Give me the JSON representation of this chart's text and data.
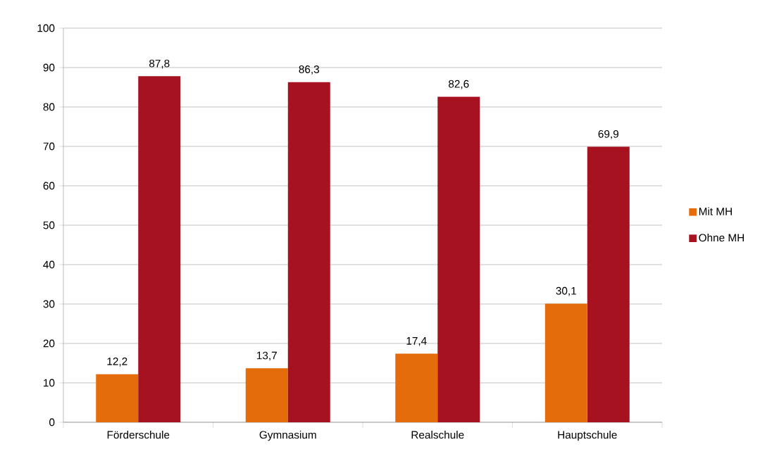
{
  "chart_data": {
    "type": "bar",
    "categories": [
      "Förderschule",
      "Gymnasium",
      "Realschule",
      "Hauptschule"
    ],
    "series": [
      {
        "name": "Mit MH",
        "color": "#e46c0a",
        "values": [
          12.2,
          13.7,
          17.4,
          30.1
        ],
        "value_labels": [
          "12,2",
          "13,7",
          "17,4",
          "30,1"
        ]
      },
      {
        "name": "Ohne MH",
        "color": "#a6121f",
        "values": [
          87.8,
          86.3,
          82.6,
          69.9
        ],
        "value_labels": [
          "87,8",
          "86,3",
          "82,6",
          "69,9"
        ]
      }
    ],
    "ylim": [
      0,
      100
    ],
    "yticks": [
      0,
      10,
      20,
      30,
      40,
      50,
      60,
      70,
      80,
      90,
      100
    ],
    "grid": "y",
    "legend": "right"
  }
}
